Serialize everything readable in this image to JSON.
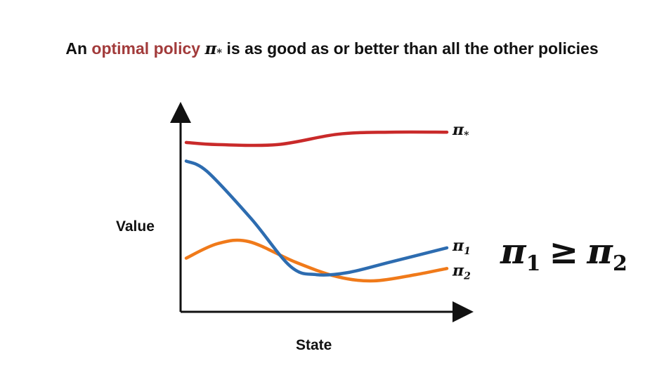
{
  "title": {
    "prefix": "An ",
    "highlight": "optimal policy",
    "pi_symbol": "π",
    "pi_subscript": "*",
    "suffix": " is as good as or better than all the other policies"
  },
  "chart_data": {
    "type": "line",
    "ylabel": "Value",
    "xlabel": "State",
    "series": [
      {
        "name": "π*",
        "color": "#c92a2a",
        "points": [
          [
            0,
            0.82
          ],
          [
            0.12,
            0.81
          ],
          [
            0.35,
            0.81
          ],
          [
            0.58,
            0.86
          ],
          [
            0.78,
            0.87
          ],
          [
            1,
            0.87
          ]
        ]
      },
      {
        "name": "π1",
        "color": "#2d6cb0",
        "points": [
          [
            0,
            0.73
          ],
          [
            0.08,
            0.68
          ],
          [
            0.25,
            0.45
          ],
          [
            0.4,
            0.22
          ],
          [
            0.5,
            0.18
          ],
          [
            0.62,
            0.19
          ],
          [
            0.78,
            0.24
          ],
          [
            1,
            0.31
          ]
        ]
      },
      {
        "name": "π2",
        "color": "#f07a1a",
        "points": [
          [
            0,
            0.26
          ],
          [
            0.12,
            0.33
          ],
          [
            0.24,
            0.34
          ],
          [
            0.42,
            0.24
          ],
          [
            0.58,
            0.17
          ],
          [
            0.72,
            0.15
          ],
          [
            0.88,
            0.18
          ],
          [
            1,
            0.21
          ]
        ]
      }
    ],
    "series_labels": [
      {
        "base": "π",
        "sub": "*"
      },
      {
        "base": "π",
        "sub": "1"
      },
      {
        "base": "π",
        "sub": "2"
      }
    ]
  },
  "inequality": {
    "left": "π",
    "left_sub": "1",
    "operator": "≥",
    "right": "π",
    "right_sub": "2"
  }
}
